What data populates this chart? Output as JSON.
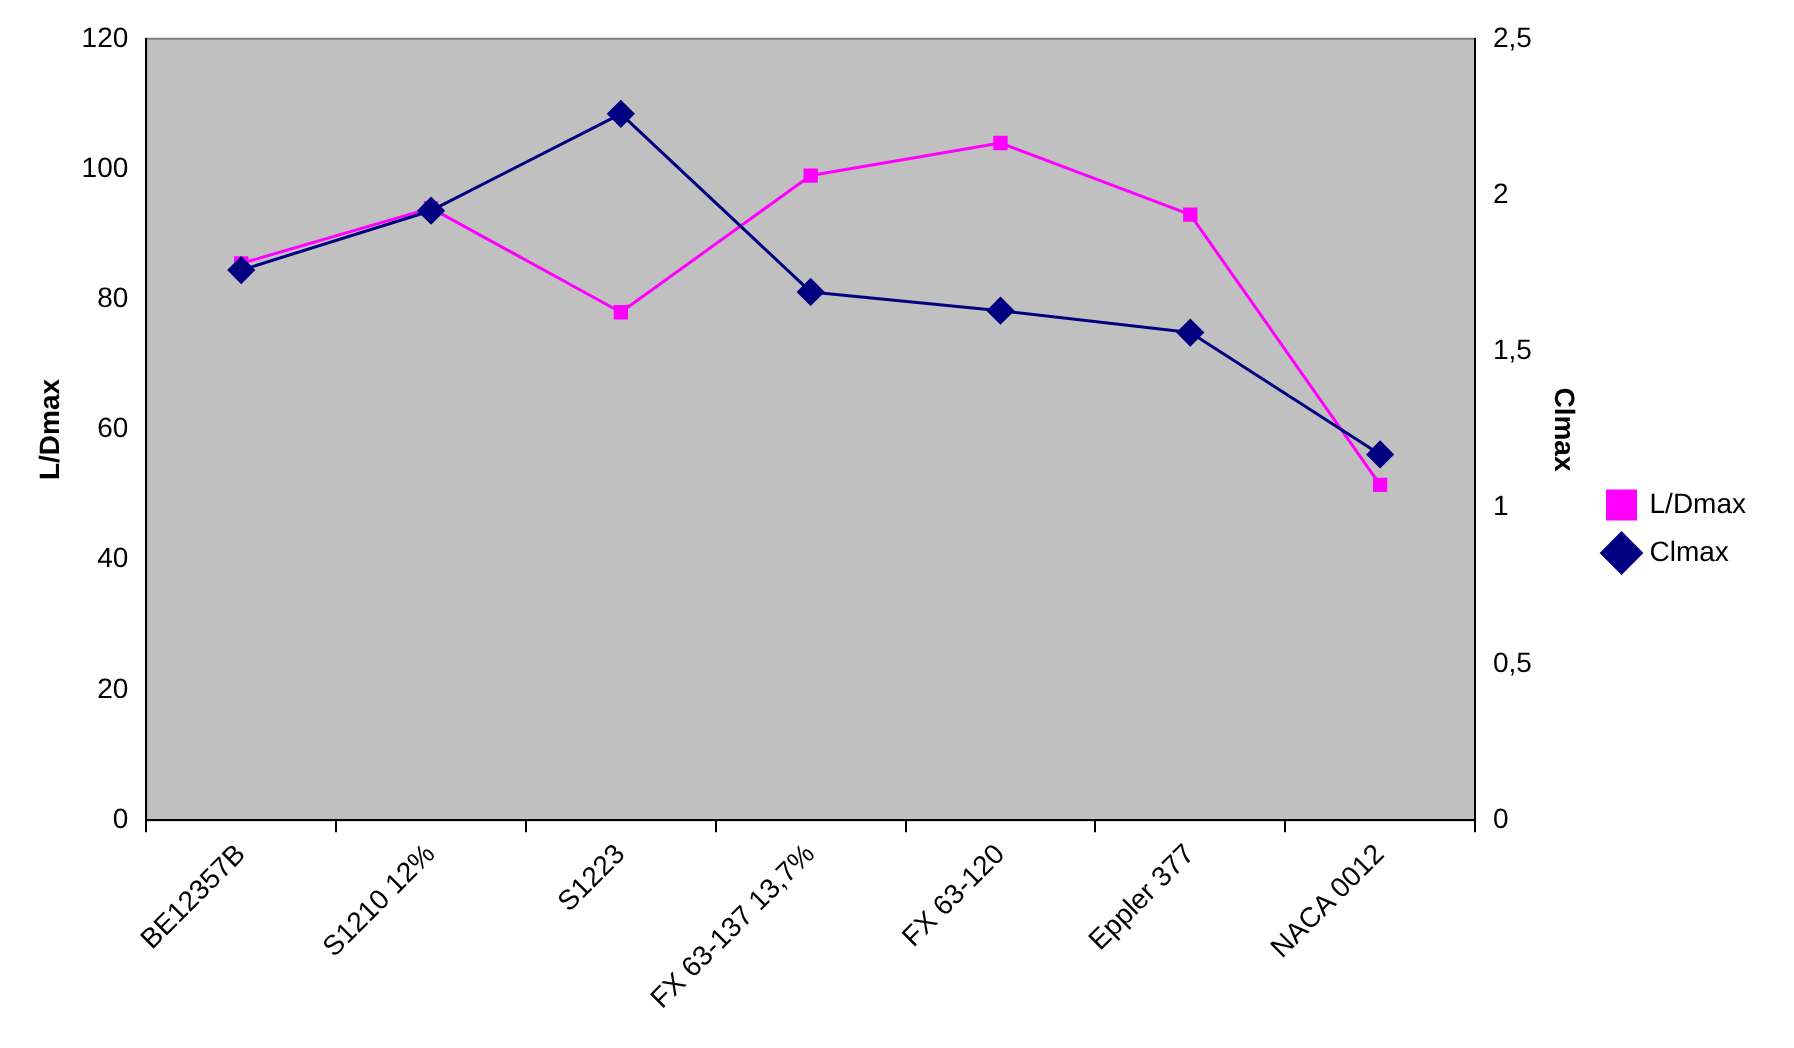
{
  "chart_data": {
    "type": "line",
    "categories": [
      "BE12357B",
      "S1210 12%",
      "S1223",
      "FX 63-137 13,7%",
      "FX 63-120",
      "Eppler 377",
      "NACA 0012"
    ],
    "series": [
      {
        "name": "L/Dmax",
        "color": "#ff00ff",
        "marker": "square",
        "values": [
          85.5,
          94,
          78,
          99,
          104,
          93,
          51.5
        ]
      },
      {
        "name": "Clmax",
        "color": "#000080",
        "marker": "diamond",
        "axis": "y2",
        "values": [
          1.76,
          1.95,
          2.26,
          1.69,
          1.63,
          1.56,
          1.17
        ]
      }
    ],
    "ylabel": "L/Dmax",
    "y2label": "Clmax",
    "ylim": [
      0,
      120
    ],
    "yticks": [
      0,
      20,
      40,
      60,
      80,
      100,
      120
    ],
    "y2lim": [
      0,
      2.5
    ],
    "y2ticks": [
      0,
      {
        "value": 0.5,
        "label": "0,5"
      },
      1,
      {
        "value": 1.5,
        "label": "1,5"
      },
      2,
      {
        "value": 2.5,
        "label": "2,5"
      }
    ],
    "grid": false,
    "legend": "right",
    "line_style": "solid"
  }
}
